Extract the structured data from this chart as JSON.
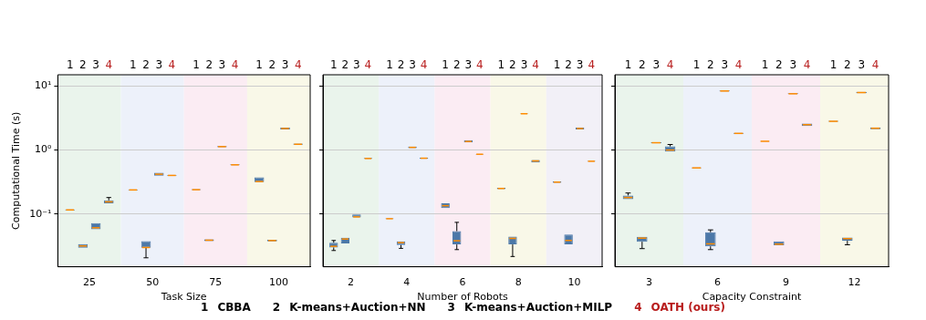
{
  "chart_data": [
    {
      "type": "box",
      "xlabel": "Task Size",
      "ylabel": "Computational Time (s)",
      "categories": [
        "25",
        "50",
        "75",
        "100"
      ],
      "log": "y",
      "ylim": [
        0.015,
        15
      ],
      "yticks": [
        {
          "value": 0.1,
          "label": "10⁻¹"
        },
        {
          "value": 1,
          "label": "10⁰"
        },
        {
          "value": 10,
          "label": "10¹"
        }
      ],
      "grid": "y",
      "annotations": [
        "1",
        "2",
        "3",
        "4",
        "CBBA",
        "K-means+Auction+NN",
        "K-means+Auction+MILP",
        "OATH (ours)"
      ],
      "bands": [
        {
          "axis": "x",
          "from": "25",
          "to": "25",
          "color": "#eaf4ec"
        },
        {
          "axis": "x",
          "from": "50",
          "to": "50",
          "color": "#edf1fa"
        },
        {
          "axis": "x",
          "from": "75",
          "to": "75",
          "color": "#fbecf3"
        },
        {
          "axis": "x",
          "from": "100",
          "to": "100",
          "color": "#f9f8e8"
        }
      ],
      "series": [
        {
          "color": "#4c78a8",
          "boxes": [
            {
              "low": 0.113,
              "q1": 0.114,
              "median": 0.116,
              "q3": 0.118,
              "high": 0.119
            },
            {
              "low": 0.234,
              "q1": 0.235,
              "median": 0.238,
              "q3": 0.241,
              "high": 0.242
            },
            {
              "low": 0.236,
              "q1": 0.237,
              "median": 0.24,
              "q3": 0.244,
              "high": 0.246
            },
            {
              "low": 0.31,
              "q1": 0.315,
              "median": 0.322,
              "q3": 0.375,
              "high": 0.378
            }
          ]
        },
        {
          "color": "#4c78a8",
          "boxes": [
            {
              "low": 0.0295,
              "q1": 0.0297,
              "median": 0.0317,
              "q3": 0.0339,
              "high": 0.034
            },
            {
              "low": 0.0207,
              "q1": 0.0297,
              "median": 0.03,
              "q3": 0.0377,
              "high": 0.0377
            },
            {
              "low": 0.0375,
              "q1": 0.0378,
              "median": 0.039,
              "q3": 0.0402,
              "high": 0.0405
            },
            {
              "low": 0.037,
              "q1": 0.0373,
              "median": 0.0385,
              "q3": 0.0397,
              "high": 0.04
            }
          ]
        },
        {
          "color": "#4c78a8",
          "boxes": [
            {
              "low": 0.0577,
              "q1": 0.0577,
              "median": 0.061,
              "q3": 0.0718,
              "high": 0.0741
            },
            {
              "low": 0.395,
              "q1": 0.397,
              "median": 0.419,
              "q3": 0.44,
              "high": 0.445
            },
            {
              "low": 1.1,
              "q1": 1.11,
              "median": 1.13,
              "q3": 1.15,
              "high": 1.16
            },
            {
              "low": 2.08,
              "q1": 2.1,
              "median": 2.17,
              "q3": 2.25,
              "high": 2.28
            }
          ]
        },
        {
          "color": "#4c78a8",
          "boxes": [
            {
              "low": 0.145,
              "q1": 0.147,
              "median": 0.155,
              "q3": 0.164,
              "high": 0.181
            },
            {
              "low": 0.395,
              "q1": 0.397,
              "median": 0.401,
              "q3": 0.405,
              "high": 0.407
            },
            {
              "low": 0.575,
              "q1": 0.578,
              "median": 0.587,
              "q3": 0.597,
              "high": 0.6
            },
            {
              "low": 1.2,
              "q1": 1.21,
              "median": 1.23,
              "q3": 1.26,
              "high": 1.27
            }
          ]
        }
      ]
    },
    {
      "type": "box",
      "xlabel": "Number of Robots",
      "categories": [
        "2",
        "4",
        "6",
        "8",
        "10"
      ],
      "log": "y",
      "ylim": [
        0.015,
        15
      ],
      "yticks": [
        {
          "value": 0.1,
          "label": null
        },
        {
          "value": 1,
          "label": null
        },
        {
          "value": 10,
          "label": null
        }
      ],
      "grid": "y",
      "tick_labels": "x",
      "annotations": [
        "1",
        "2",
        "3",
        "4"
      ],
      "bands": [
        {
          "axis": "x",
          "from": "2",
          "to": "2",
          "color": "#eaf4ec"
        },
        {
          "axis": "x",
          "from": "4",
          "to": "4",
          "color": "#edf1fa"
        },
        {
          "axis": "x",
          "from": "6",
          "to": "6",
          "color": "#fbecf3"
        },
        {
          "axis": "x",
          "from": "8",
          "to": "8",
          "color": "#f9f8e8"
        },
        {
          "axis": "x",
          "from": "10",
          "to": "10",
          "color": "#f2f0f7"
        }
      ],
      "series": [
        {
          "color": "#4c78a8",
          "boxes": [
            {
              "low": 0.0269,
              "q1": 0.03,
              "median": 0.0313,
              "q3": 0.0357,
              "high": 0.0386
            },
            {
              "low": 0.083,
              "q1": 0.0835,
              "median": 0.0845,
              "q3": 0.0855,
              "high": 0.086
            },
            {
              "low": 0.123,
              "q1": 0.124,
              "median": 0.135,
              "q3": 0.147,
              "high": 0.152
            },
            {
              "low": 0.24,
              "q1": 0.245,
              "median": 0.251,
              "q3": 0.257,
              "high": 0.26
            },
            {
              "low": 0.305,
              "q1": 0.308,
              "median": 0.315,
              "q3": 0.322,
              "high": 0.325
            }
          ]
        },
        {
          "color": "#4c78a8",
          "boxes": [
            {
              "low": 0.0346,
              "q1": 0.0346,
              "median": 0.0407,
              "q3": 0.0426,
              "high": 0.0426
            },
            {
              "low": 0.0291,
              "q1": 0.0328,
              "median": 0.0357,
              "q3": 0.0373,
              "high": 0.0373
            },
            {
              "low": 0.0278,
              "q1": 0.0335,
              "median": 0.0382,
              "q3": 0.054,
              "high": 0.0741
            },
            {
              "low": 0.0217,
              "q1": 0.0335,
              "median": 0.0416,
              "q3": 0.0445,
              "high": 0.0445
            },
            {
              "low": 0.033,
              "q1": 0.0335,
              "median": 0.0386,
              "q3": 0.048,
              "high": 0.048
            }
          ]
        },
        {
          "color": "#4c78a8",
          "boxes": [
            {
              "low": 0.0883,
              "q1": 0.0883,
              "median": 0.0902,
              "q3": 0.0984,
              "high": 0.0984
            },
            {
              "low": 1.05,
              "q1": 1.07,
              "median": 1.1,
              "q3": 1.13,
              "high": 1.15
            },
            {
              "low": 1.28,
              "q1": 1.31,
              "median": 1.36,
              "q3": 1.42,
              "high": 1.45
            },
            {
              "low": 3.65,
              "q1": 3.66,
              "median": 3.69,
              "q3": 3.72,
              "high": 3.73
            },
            {
              "low": 2.08,
              "q1": 2.1,
              "median": 2.17,
              "q3": 2.25,
              "high": 2.28
            }
          ]
        },
        {
          "color": "#4c78a8",
          "boxes": [
            {
              "low": 0.72,
              "q1": 0.725,
              "median": 0.737,
              "q3": 0.75,
              "high": 0.755
            },
            {
              "low": 0.72,
              "q1": 0.73,
              "median": 0.745,
              "q3": 0.76,
              "high": 0.77
            },
            {
              "low": 0.845,
              "q1": 0.85,
              "median": 0.859,
              "q3": 0.868,
              "high": 0.872
            },
            {
              "low": 0.62,
              "q1": 0.64,
              "median": 0.676,
              "q3": 0.7,
              "high": 0.71
            },
            {
              "low": 0.66,
              "q1": 0.662,
              "median": 0.668,
              "q3": 0.674,
              "high": 0.676
            }
          ]
        }
      ]
    },
    {
      "type": "box",
      "xlabel": "Capacity Constraint",
      "categories": [
        "3",
        "6",
        "9",
        "12"
      ],
      "log": "y",
      "ylim": [
        0.015,
        15
      ],
      "yticks": [
        {
          "value": 0.1,
          "label": null
        },
        {
          "value": 1,
          "label": null
        },
        {
          "value": 10,
          "label": null
        }
      ],
      "grid": "y",
      "tick_labels": "x",
      "annotations": [
        "1",
        "2",
        "3",
        "4"
      ],
      "bands": [
        {
          "axis": "x",
          "from": "3",
          "to": "3",
          "color": "#eaf4ec"
        },
        {
          "axis": "x",
          "from": "6",
          "to": "6",
          "color": "#edf1fa"
        },
        {
          "axis": "x",
          "from": "9",
          "to": "9",
          "color": "#fbecf3"
        },
        {
          "axis": "x",
          "from": "12",
          "to": "12",
          "color": "#f9f8e8"
        }
      ],
      "series": [
        {
          "color": "#4c78a8",
          "boxes": [
            {
              "low": 0.168,
              "q1": 0.171,
              "median": 0.181,
              "q3": 0.195,
              "high": 0.213
            },
            {
              "low": 0.515,
              "q1": 0.518,
              "median": 0.526,
              "q3": 0.535,
              "high": 0.538
            },
            {
              "low": 1.35,
              "q1": 1.36,
              "median": 1.37,
              "q3": 1.38,
              "high": 1.39
            },
            {
              "low": 2.74,
              "q1": 2.76,
              "median": 2.81,
              "q3": 2.86,
              "high": 2.88
            }
          ]
        },
        {
          "color": "#4c78a8",
          "boxes": [
            {
              "low": 0.0288,
              "q1": 0.0369,
              "median": 0.042,
              "q3": 0.044,
              "high": 0.044
            },
            {
              "low": 0.0278,
              "q1": 0.0313,
              "median": 0.0342,
              "q3": 0.0518,
              "high": 0.0565
            },
            {
              "low": 0.0322,
              "q1": 0.0324,
              "median": 0.0338,
              "q3": 0.0373,
              "high": 0.0373
            },
            {
              "low": 0.0331,
              "q1": 0.0382,
              "median": 0.0413,
              "q3": 0.043,
              "high": 0.0432
            }
          ]
        },
        {
          "color": "#4c78a8",
          "boxes": [
            {
              "low": 1.27,
              "q1": 1.28,
              "median": 1.3,
              "q3": 1.32,
              "high": 1.33
            },
            {
              "low": 8.2,
              "q1": 8.25,
              "median": 8.36,
              "q3": 8.5,
              "high": 8.55
            },
            {
              "low": 7.4,
              "q1": 7.45,
              "median": 7.57,
              "q3": 7.7,
              "high": 7.75
            },
            {
              "low": 7.7,
              "q1": 7.75,
              "median": 7.91,
              "q3": 8.1,
              "high": 8.15
            }
          ]
        },
        {
          "color": "#4c78a8",
          "boxes": [
            {
              "low": 0.93,
              "q1": 0.947,
              "median": 1.0,
              "q3": 1.14,
              "high": 1.22
            },
            {
              "low": 1.78,
              "q1": 1.79,
              "median": 1.82,
              "q3": 1.86,
              "high": 1.87
            },
            {
              "low": 2.3,
              "q1": 2.38,
              "median": 2.49,
              "q3": 2.6,
              "high": 2.62
            },
            {
              "low": 2.1,
              "q1": 2.12,
              "median": 2.19,
              "q3": 2.25,
              "high": 2.27
            }
          ]
        }
      ]
    }
  ]
}
